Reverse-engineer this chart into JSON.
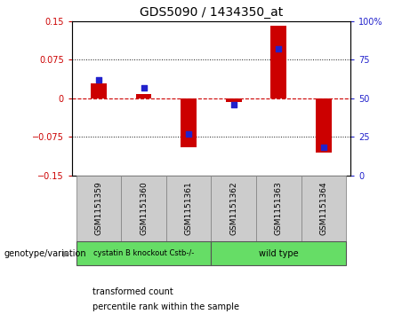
{
  "title": "GDS5090 / 1434350_at",
  "samples": [
    "GSM1151359",
    "GSM1151360",
    "GSM1151361",
    "GSM1151362",
    "GSM1151363",
    "GSM1151364"
  ],
  "transformed_count": [
    0.028,
    0.008,
    -0.095,
    -0.008,
    0.14,
    -0.105
  ],
  "percentile_rank": [
    62,
    57,
    27,
    46,
    82,
    18
  ],
  "ylim_left": [
    -0.15,
    0.15
  ],
  "ylim_right": [
    0,
    100
  ],
  "yticks_left": [
    -0.15,
    -0.075,
    0,
    0.075,
    0.15
  ],
  "yticks_right": [
    0,
    25,
    50,
    75,
    100
  ],
  "bar_color": "#cc0000",
  "dot_color": "#2222cc",
  "zero_line_color": "#cc0000",
  "grid_color": "#111111",
  "group1_label": "cystatin B knockout Cstb-/-",
  "group2_label": "wild type",
  "group_color": "#66dd66",
  "sample_box_color": "#cccccc",
  "genotype_label": "genotype/variation",
  "legend_items": [
    {
      "label": "transformed count",
      "color": "#cc0000"
    },
    {
      "label": "percentile rank within the sample",
      "color": "#2222cc"
    }
  ],
  "bar_width": 0.35,
  "background_color": "#ffffff"
}
